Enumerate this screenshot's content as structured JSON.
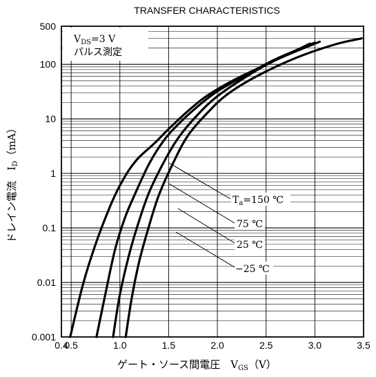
{
  "chart_data": {
    "type": "line",
    "title": "TRANSFER CHARACTERISTICS",
    "xlabel": "ゲート・ソース間電圧　V",
    "xlabel_sub": "GS",
    "xlabel_unit": "（V）",
    "ylabel": "ドレイン電流　I",
    "ylabel_sub": "D",
    "ylabel_unit": "（mA）",
    "xlim": [
      0.4,
      3.5
    ],
    "ylim": [
      0.001,
      500
    ],
    "yscale": "log",
    "grid": true,
    "xticks": [
      "0.4",
      "0.5",
      "1.0",
      "1.5",
      "2.0",
      "2.5",
      "3.0",
      "3.5"
    ],
    "xtick_values": [
      0.4,
      0.5,
      1.0,
      1.5,
      2.0,
      2.5,
      3.0,
      3.5
    ],
    "yticks": [
      "0.001",
      "0.01",
      "0.1",
      "1",
      "10",
      "100",
      "500"
    ],
    "ytick_values": [
      0.001,
      0.01,
      0.1,
      1,
      10,
      100,
      500
    ],
    "condition_line1_main": "V",
    "condition_line1_sub": "DS",
    "condition_line1_rest": "=3 V",
    "condition_line2": "パルス測定",
    "series": [
      {
        "name": "Ta=150℃",
        "x": [
          0.49,
          0.62,
          0.75,
          0.9,
          1.0,
          1.1,
          1.2,
          1.35,
          1.5,
          1.7,
          1.9,
          2.2,
          2.6,
          2.95
        ],
        "y": [
          0.001,
          0.009,
          0.05,
          0.25,
          0.6,
          1.2,
          2.0,
          3.5,
          6.5,
          14,
          27,
          55,
          120,
          240
        ]
      },
      {
        "name": "75℃",
        "x": [
          0.76,
          0.85,
          0.95,
          1.05,
          1.15,
          1.3,
          1.45,
          1.6,
          1.8,
          2.0,
          2.3,
          2.6,
          3.0
        ],
        "y": [
          0.001,
          0.006,
          0.04,
          0.15,
          0.4,
          1.5,
          4.0,
          8.0,
          17,
          32,
          65,
          125,
          250
        ]
      },
      {
        "name": "25℃",
        "x": [
          0.93,
          1.0,
          1.1,
          1.2,
          1.3,
          1.45,
          1.6,
          1.8,
          2.0,
          2.3,
          2.6,
          3.05
        ],
        "y": [
          0.001,
          0.006,
          0.035,
          0.14,
          0.45,
          1.6,
          4.5,
          12,
          26,
          60,
          120,
          260
        ]
      },
      {
        "name": "-25℃",
        "x": [
          1.06,
          1.12,
          1.2,
          1.3,
          1.4,
          1.55,
          1.7,
          1.9,
          2.1,
          2.4,
          2.8,
          3.2,
          3.48
        ],
        "y": [
          0.001,
          0.005,
          0.025,
          0.11,
          0.4,
          1.6,
          5.0,
          13,
          28,
          60,
          130,
          230,
          300
        ]
      }
    ],
    "legend_labels": [
      "T",
      "a",
      "=150 ℃",
      "75 ℃",
      "25 ℃",
      "−25 ℃"
    ]
  }
}
